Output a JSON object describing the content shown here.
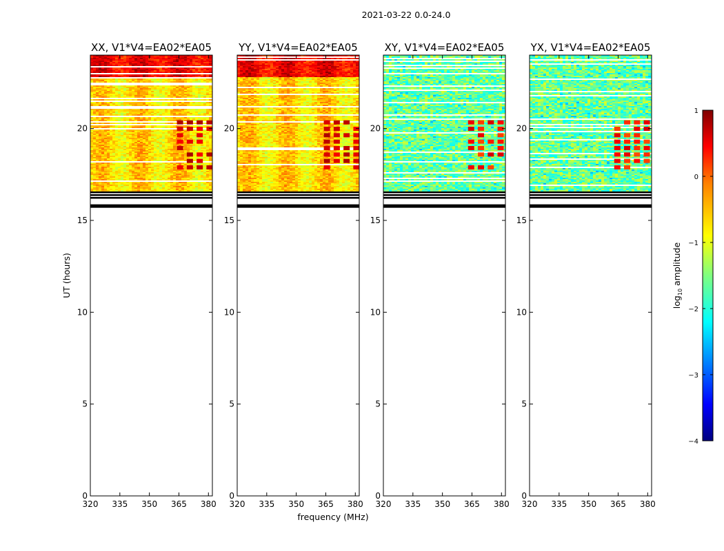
{
  "suptitle": "2021-03-22 0.0-24.0",
  "chart_data": {
    "type": "heatmap",
    "title": "2021-03-22 0.0-24.0",
    "xlabel": "frequency (MHz)",
    "ylabel": "UT (hours)",
    "xlim": [
      320,
      382
    ],
    "ylim": [
      0,
      24
    ],
    "x_ticks": [
      320,
      335,
      350,
      365,
      380
    ],
    "y_ticks": [
      0,
      5,
      10,
      15,
      20
    ],
    "data_time_range_hours": [
      16.6,
      24.0
    ],
    "blank_time_range_hours": [
      0.0,
      15.7
    ],
    "gap_bands_hours": [
      15.8,
      16.2,
      16.35,
      16.5
    ],
    "panels": [
      {
        "title": "XX, V1*V4=EA02*EA05",
        "polarization": "XX",
        "level": "high",
        "rfi_channels_mhz": [
          364,
          369,
          374,
          379
        ]
      },
      {
        "title": "YY, V1*V4=EA02*EA05",
        "polarization": "YY",
        "level": "high",
        "rfi_channels_mhz": [
          364,
          369,
          374,
          379
        ]
      },
      {
        "title": "XY, V1*V4=EA02*EA05",
        "polarization": "XY",
        "level": "low",
        "rfi_channels_mhz": [
          363,
          368,
          373,
          378
        ]
      },
      {
        "title": "YX, V1*V4=EA02*EA05",
        "polarization": "YX",
        "level": "low",
        "rfi_channels_mhz": [
          363,
          368,
          373,
          378
        ]
      }
    ],
    "colorbar": {
      "label": "log₁₀ amplitude",
      "label_base": "log",
      "label_sub": "10",
      "label_rest": " amplitude",
      "range": [
        -4,
        1
      ],
      "ticks": [
        1,
        0,
        -1,
        -2,
        -3,
        -4
      ],
      "tick_labels": [
        "1",
        "0",
        "−1",
        "−2",
        "−3",
        "−4"
      ],
      "colormap": "jet"
    }
  }
}
